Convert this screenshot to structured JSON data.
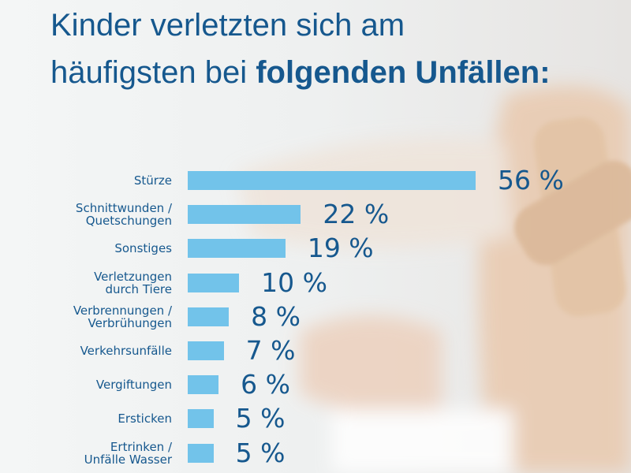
{
  "chart_data": {
    "type": "bar",
    "orientation": "horizontal",
    "title": "Kinder verletzten sich am häufigsten bei",
    "title_emphasis": "folgenden Unfällen:",
    "categories": [
      "Stürze",
      "Schnittwunden /\nQuetschungen",
      "Sonstiges",
      "Verletzungen\ndurch Tiere",
      "Verbrennungen /\nVerbrühungen",
      "Verkehrsunfälle",
      "Vergiftungen",
      "Ersticken",
      "Ertrinken /\nUnfälle Wasser"
    ],
    "values": [
      56,
      22,
      19,
      10,
      8,
      7,
      6,
      5,
      5
    ],
    "value_labels": [
      "56 %",
      "22 %",
      "19 %",
      "10 %",
      "8 %",
      "7 %",
      "6 %",
      "5 %",
      "5 %"
    ],
    "color": "#72c3ea"
  }
}
